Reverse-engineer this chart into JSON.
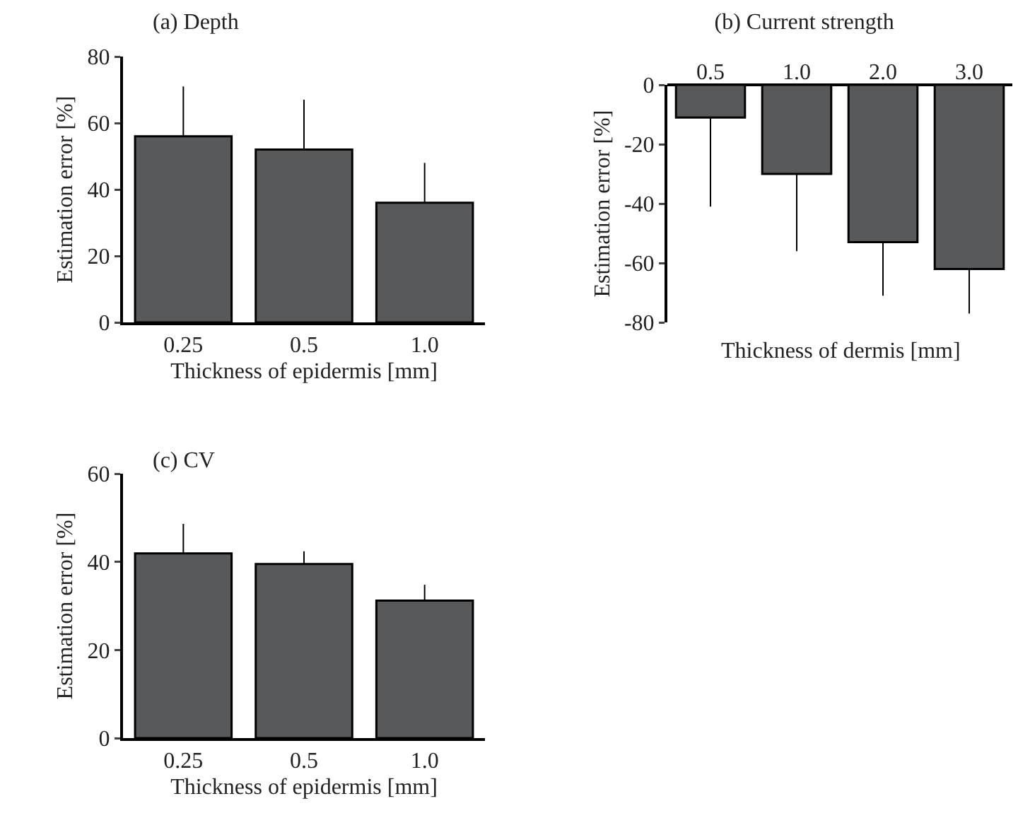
{
  "chart_data": [
    {
      "type": "bar",
      "title": "(a) Depth",
      "xlabel": "Thickness of epidermis [mm]",
      "ylabel": "Estimation error [%]",
      "categories": [
        "0.25",
        "0.5",
        "1.0"
      ],
      "values": [
        56,
        52,
        36
      ],
      "errors": [
        [
          56,
          71
        ],
        [
          52,
          67
        ],
        [
          36,
          48
        ]
      ],
      "color": "#58595b",
      "ylim": [
        0,
        80
      ],
      "yticks": [
        0,
        20,
        40,
        60,
        80
      ],
      "grid": false
    },
    {
      "type": "bar",
      "title": "(b) Current strength",
      "xlabel": "Thickness of dermis [mm]",
      "ylabel": "Estimation error [%]",
      "categories": [
        "0.5",
        "1.0",
        "2.0",
        "3.0"
      ],
      "values": [
        -11,
        -30,
        -53,
        -62
      ],
      "errors": [
        [
          -41,
          -11
        ],
        [
          -56,
          -30
        ],
        [
          -71,
          -53
        ],
        [
          -77,
          -62
        ]
      ],
      "color": "#58595b",
      "ylim": [
        -80,
        0
      ],
      "yticks": [
        -80,
        -60,
        -40,
        -20,
        0
      ],
      "grid": false
    },
    {
      "type": "bar",
      "title": "(c) CV",
      "xlabel": "Thickness of epidermis [mm]",
      "ylabel": "Estimation error [%]",
      "categories": [
        "0.25",
        "0.5",
        "1.0"
      ],
      "values": [
        41.9,
        39.5,
        31.2
      ],
      "errors": [
        [
          41.9,
          48.6
        ],
        [
          39.5,
          42.4
        ],
        [
          31.2,
          34.8
        ]
      ],
      "color": "#58595b",
      "ylim": [
        0,
        60
      ],
      "yticks": [
        0,
        20,
        40,
        60
      ],
      "grid": false
    }
  ]
}
